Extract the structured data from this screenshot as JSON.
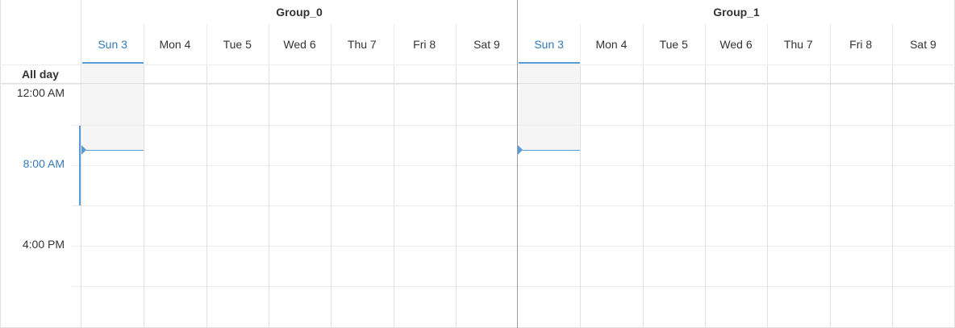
{
  "groups": [
    {
      "name": "Group_0",
      "days": [
        {
          "label": "Sun 3",
          "today": true
        },
        {
          "label": "Mon 4"
        },
        {
          "label": "Tue 5"
        },
        {
          "label": "Wed 6"
        },
        {
          "label": "Thu 7"
        },
        {
          "label": "Fri 8"
        },
        {
          "label": "Sat 9"
        }
      ]
    },
    {
      "name": "Group_1",
      "days": [
        {
          "label": "Sun 3",
          "today": true
        },
        {
          "label": "Mon 4"
        },
        {
          "label": "Tue 5"
        },
        {
          "label": "Wed 6"
        },
        {
          "label": "Thu 7"
        },
        {
          "label": "Fri 8"
        },
        {
          "label": "Sat 9"
        }
      ]
    }
  ],
  "all_day_label": "All day",
  "time_labels": [
    "12:00 AM",
    "8:00 AM",
    "4:00 PM"
  ],
  "current_time_label": "8:00 AM",
  "colors": {
    "accent": "#337ab7",
    "now_indicator": "#5a9bd5",
    "past_shade": "#f5f5f5"
  }
}
